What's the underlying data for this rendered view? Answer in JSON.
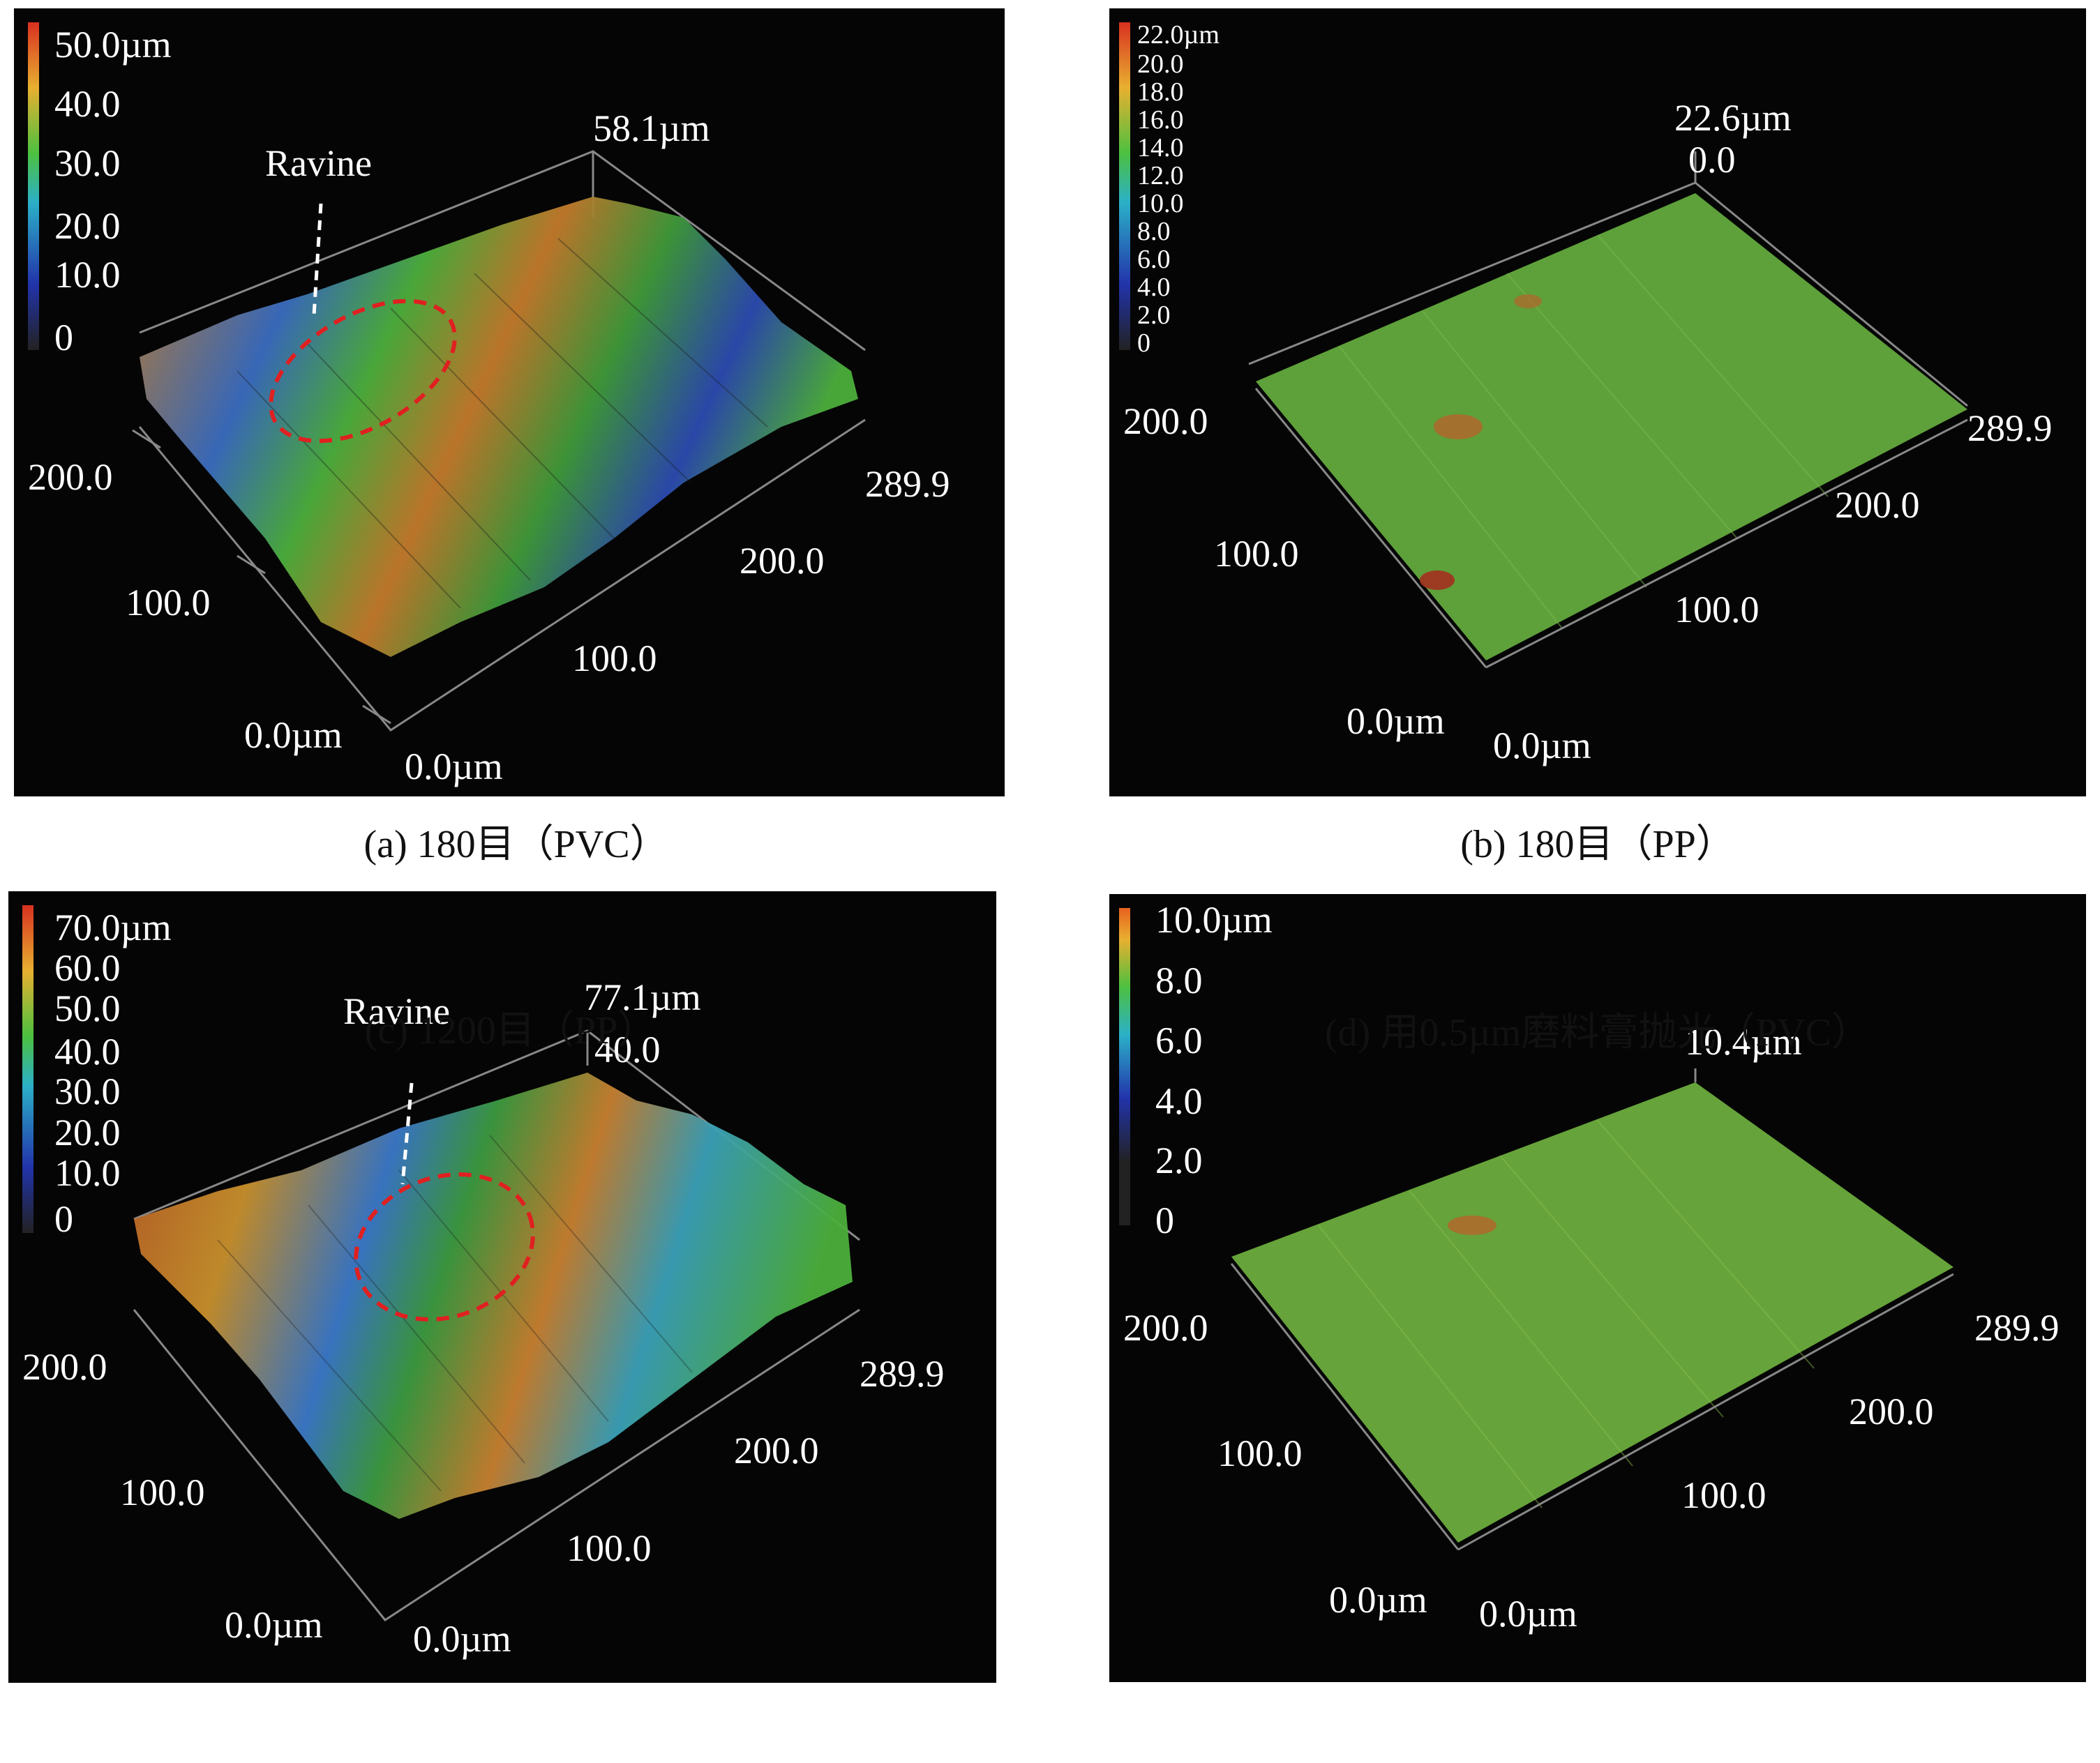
{
  "figure": {
    "panels": [
      {
        "id": "a",
        "caption": "(a) 180目（PVC）",
        "colorbar": [
          "50.0µm",
          "40.0",
          "30.0",
          "20.0",
          "10.0",
          "0"
        ],
        "z_max_label": "58.1µm",
        "z_min_label": "",
        "annotation": "Ravine",
        "axis_left": [
          "200.0",
          "100.0",
          "0.0µm"
        ],
        "axis_right": [
          "289.9",
          "200.0",
          "100.0",
          "0.0µm"
        ],
        "colors": {
          "low": "#2a3aa8",
          "mid": "#4caf3c",
          "high": "#c8722c"
        }
      },
      {
        "id": "b",
        "caption": "(b) 180目（PP）",
        "colorbar": [
          "22.0µm",
          "20.0",
          "18.0",
          "16.0",
          "14.0",
          "12.0",
          "10.0",
          "8.0",
          "6.0",
          "4.0",
          "2.0",
          "0"
        ],
        "z_max_label": "22.6µm",
        "z_min_label": "0.0",
        "annotation": "",
        "axis_left": [
          "200.0",
          "100.0",
          "0.0µm"
        ],
        "axis_right": [
          "289.9",
          "200.0",
          "100.0",
          "0.0µm"
        ],
        "colors": {
          "surface": "#5ea03a"
        }
      },
      {
        "id": "c",
        "caption": "(c) 1200目（PP）",
        "colorbar": [
          "70.0µm",
          "60.0",
          "50.0",
          "40.0",
          "30.0",
          "20.0",
          "10.0",
          "0"
        ],
        "z_max_label": "77.1µm",
        "z_min_label": "40.0",
        "annotation": "Ravine",
        "axis_left": [
          "200.0",
          "100.0",
          "0.0µm"
        ],
        "axis_right": [
          "289.9",
          "200.0",
          "100.0",
          "0.0µm"
        ],
        "colors": {
          "low": "#2a3aa8",
          "mid": "#4caf3c",
          "high": "#b85a26"
        }
      },
      {
        "id": "d",
        "caption": "(d) 用0.5µm磨料膏抛光（PVC）",
        "colorbar": [
          "10.0µm",
          "8.0",
          "6.0",
          "4.0",
          "2.0",
          "0"
        ],
        "z_max_label": "10.4µm",
        "z_min_label": "",
        "annotation": "",
        "axis_left": [
          "200.0",
          "100.0",
          "0.0µm"
        ],
        "axis_right": [
          "289.9",
          "200.0",
          "100.0",
          "0.0µm"
        ],
        "colors": {
          "surface": "#66a33a"
        }
      }
    ]
  }
}
